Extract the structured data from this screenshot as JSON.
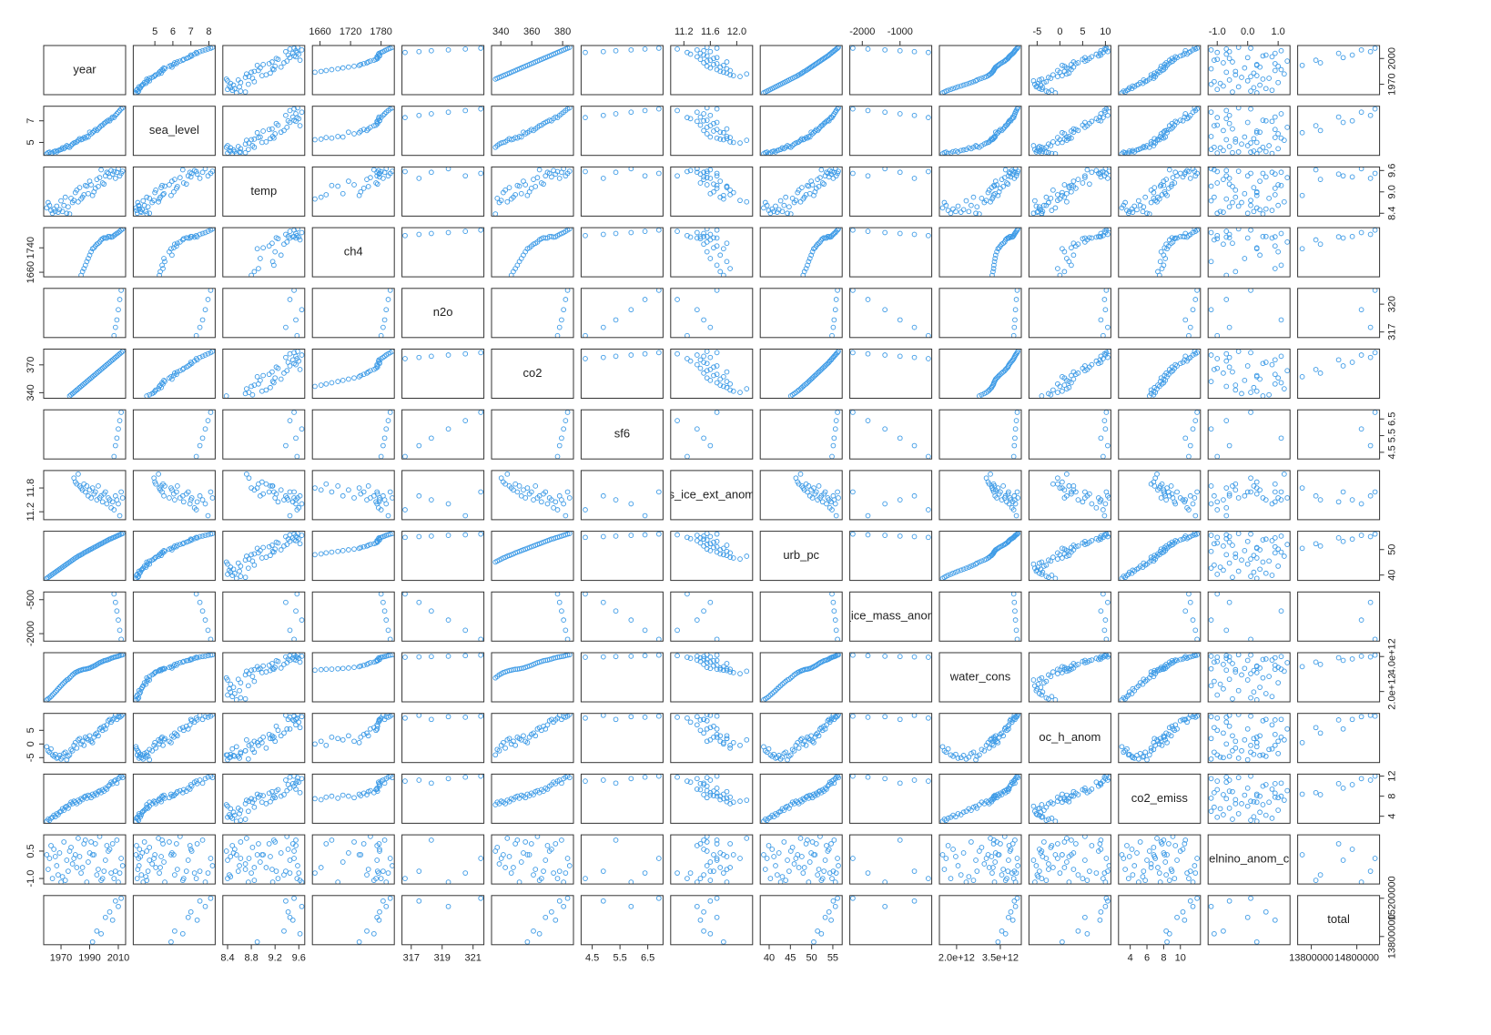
{
  "chart_data": {
    "type": "scatter_matrix",
    "color": "#3c9ae6",
    "variables": [
      {
        "name": "year",
        "lim": [
          1957.9,
          2015.1
        ],
        "xticks": [
          1970,
          1990,
          2010
        ],
        "yticks": [
          1970,
          2000
        ],
        "values": [
          1960,
          1961,
          1962,
          1963,
          1964,
          1965,
          1966,
          1967,
          1968,
          1969,
          1970,
          1971,
          1972,
          1973,
          1974,
          1975,
          1976,
          1977,
          1978,
          1979,
          1980,
          1981,
          1982,
          1983,
          1984,
          1985,
          1986,
          1987,
          1988,
          1989,
          1990,
          1991,
          1992,
          1993,
          1994,
          1995,
          1996,
          1997,
          1998,
          1999,
          2000,
          2001,
          2002,
          2003,
          2004,
          2005,
          2006,
          2007,
          2008,
          2009,
          2010,
          2011,
          2012,
          2013
        ]
      },
      {
        "name": "sea_level",
        "lim": [
          3.8,
          8.35
        ],
        "xticks": [
          5,
          6,
          7,
          8
        ],
        "yticks": [
          5,
          7
        ],
        "values": [
          3.95,
          4.05,
          4.1,
          3.98,
          4.02,
          4.15,
          4.2,
          4.12,
          4.25,
          4.3,
          4.35,
          4.5,
          4.42,
          4.55,
          4.7,
          4.62,
          4.55,
          4.7,
          4.85,
          4.95,
          5.0,
          5.05,
          5.2,
          5.35,
          5.25,
          5.3,
          5.45,
          5.4,
          5.55,
          5.5,
          5.95,
          5.8,
          5.9,
          6.05,
          6.2,
          6.1,
          6.25,
          6.4,
          6.55,
          6.6,
          6.75,
          6.85,
          6.95,
          7.05,
          7.0,
          7.2,
          7.35,
          7.3,
          7.5,
          7.65,
          7.8,
          7.95,
          8.1,
          8.2
        ]
      },
      {
        "name": "temp",
        "lim": [
          8.32,
          9.7
        ],
        "xticks": [
          8.4,
          8.8,
          9.2,
          9.6
        ],
        "yticks": [
          8.4,
          {
            "value": 9,
            "label": "9.0"
          },
          9.6
        ],
        "values": [
          8.55,
          8.7,
          8.62,
          8.48,
          8.4,
          8.52,
          8.45,
          8.6,
          8.43,
          8.5,
          8.75,
          8.45,
          8.62,
          8.85,
          8.4,
          8.58,
          8.38,
          8.82,
          8.7,
          8.76,
          8.98,
          9.05,
          8.72,
          9.12,
          8.8,
          8.85,
          8.92,
          9.18,
          9.16,
          8.95,
          9.3,
          9.2,
          8.9,
          9.0,
          9.1,
          9.35,
          9.15,
          9.4,
          9.62,
          9.25,
          9.22,
          9.45,
          9.55,
          9.52,
          9.42,
          9.6,
          9.5,
          9.57,
          9.38,
          9.55,
          9.65,
          9.45,
          9.52,
          9.58
        ]
      },
      {
        "name": "ch4",
        "lim": [
          1645,
          1806
        ],
        "xticks": [
          1660,
          1720,
          1780
        ],
        "yticks": [
          1660,
          1740
        ],
        "values": [
          null,
          null,
          null,
          null,
          null,
          null,
          null,
          null,
          null,
          null,
          null,
          null,
          null,
          null,
          null,
          null,
          null,
          null,
          null,
          null,
          null,
          null,
          null,
          null,
          1650,
          1662,
          1672,
          1683,
          1695,
          1705,
          1716,
          1727,
          1737,
          1740,
          1746,
          1752,
          1755,
          1759,
          1766,
          1770,
          1773,
          1772,
          1772,
          1777,
          1777,
          1775,
          1776,
          1780,
          1784,
          1787,
          1790,
          1794,
          1798,
          1802
        ]
      },
      {
        "name": "n2o",
        "lim": [
          316.4,
          321.7
        ],
        "xticks": [
          317,
          319,
          321
        ],
        "yticks": [
          317,
          320
        ],
        "values": [
          null,
          null,
          null,
          null,
          null,
          null,
          null,
          null,
          null,
          null,
          null,
          null,
          null,
          null,
          null,
          null,
          null,
          null,
          null,
          null,
          null,
          null,
          null,
          null,
          null,
          null,
          null,
          null,
          null,
          null,
          null,
          null,
          null,
          null,
          null,
          null,
          null,
          null,
          null,
          null,
          null,
          null,
          null,
          null,
          null,
          null,
          null,
          316.6,
          317.5,
          318.3,
          319.4,
          320.5,
          321.5,
          null
        ]
      },
      {
        "name": "co2",
        "lim": [
          334,
          387
        ],
        "xticks": [
          340,
          360,
          380
        ],
        "yticks": [
          340,
          370
        ],
        "values": [
          null,
          null,
          null,
          null,
          null,
          null,
          null,
          null,
          null,
          null,
          null,
          null,
          null,
          null,
          null,
          null,
          336.5,
          337.7,
          339.0,
          340.3,
          341.6,
          342.9,
          344.2,
          345.5,
          346.8,
          348.1,
          349.4,
          350.7,
          352.0,
          353.3,
          354.6,
          355.9,
          357.2,
          358.5,
          359.8,
          361.1,
          362.4,
          363.7,
          365.0,
          366.3,
          367.6,
          368.9,
          370.2,
          371.5,
          372.8,
          374.1,
          375.4,
          376.7,
          378.0,
          379.3,
          380.6,
          381.9,
          383.2,
          384.5
        ]
      },
      {
        "name": "sf6",
        "lim": [
          4.1,
          7.05
        ],
        "xticks": [
          4.5,
          5.5,
          6.5
        ],
        "yticks": [
          4.5,
          5.5,
          6.5
        ],
        "values": [
          null,
          null,
          null,
          null,
          null,
          null,
          null,
          null,
          null,
          null,
          null,
          null,
          null,
          null,
          null,
          null,
          null,
          null,
          null,
          null,
          null,
          null,
          null,
          null,
          null,
          null,
          null,
          null,
          null,
          null,
          null,
          null,
          null,
          null,
          null,
          null,
          null,
          null,
          null,
          null,
          null,
          null,
          null,
          null,
          null,
          null,
          null,
          4.25,
          4.9,
          5.35,
          5.9,
          6.4,
          6.9,
          null
        ]
      },
      {
        "name": "s_ice_ext_anom",
        "lim": [
          11.0,
          12.24
        ],
        "xticks": [
          11.2,
          11.6,
          {
            "value": 12,
            "label": "12.0"
          }
        ],
        "yticks": [
          11.2,
          11.8
        ],
        "values": [
          null,
          null,
          null,
          null,
          null,
          null,
          null,
          null,
          null,
          null,
          null,
          null,
          null,
          null,
          null,
          null,
          null,
          null,
          null,
          12.05,
          11.95,
          11.9,
          12.15,
          11.85,
          11.8,
          11.75,
          11.9,
          11.7,
          11.85,
          11.6,
          11.75,
          11.55,
          11.8,
          11.65,
          11.7,
          11.5,
          11.85,
          11.55,
          11.6,
          11.45,
          11.65,
          11.7,
          11.4,
          11.55,
          11.5,
          11.3,
          11.45,
          11.25,
          11.6,
          11.5,
          11.4,
          11.1,
          11.7,
          11.55
        ]
      },
      {
        "name": "urb_pc",
        "lim": [
          37.9,
          57.2
        ],
        "xticks": [
          40,
          45,
          50,
          55
        ],
        "yticks": [
          40,
          50
        ],
        "values": [
          38.7,
          39.1,
          39.5,
          39.9,
          40.3,
          40.7,
          41.1,
          41.5,
          41.9,
          42.3,
          42.7,
          43.1,
          43.5,
          43.9,
          44.3,
          44.7,
          45.1,
          45.5,
          45.9,
          46.3,
          46.7,
          47.0,
          47.4,
          47.7,
          48.0,
          48.3,
          48.7,
          49.0,
          49.3,
          49.6,
          49.9,
          50.2,
          50.5,
          50.8,
          51.1,
          51.4,
          51.7,
          52.0,
          52.3,
          52.6,
          52.9,
          53.2,
          53.5,
          53.8,
          54.1,
          54.3,
          54.6,
          54.8,
          55.1,
          55.3,
          55.6,
          55.8,
          56.1,
          56.3
        ]
      },
      {
        "name": "_ice_mass_anom",
        "lim": [
          -2330,
          -160
        ],
        "xticks": [
          -2000,
          -1000
        ],
        "yticks": [
          -2000,
          -500
        ],
        "values": [
          null,
          null,
          null,
          null,
          null,
          null,
          null,
          null,
          null,
          null,
          null,
          null,
          null,
          null,
          null,
          null,
          null,
          null,
          null,
          null,
          null,
          null,
          null,
          null,
          null,
          null,
          null,
          null,
          null,
          null,
          null,
          null,
          null,
          null,
          null,
          null,
          null,
          null,
          null,
          null,
          null,
          null,
          null,
          null,
          null,
          null,
          null,
          -250,
          -620,
          -1000,
          -1400,
          -1850,
          -2250,
          null
        ]
      },
      {
        "name": "water_cons",
        "lim": [
          1410000000000.0,
          4220000000000.0
        ],
        "xticks": [
          {
            "value": 2000000000000.0,
            "label": "2.0e+12"
          },
          {
            "value": 3500000000000.0,
            "label": "3.5e+12"
          }
        ],
        "yticks": [
          {
            "value": 2000000000000.0,
            "label": "2.0e+12"
          },
          {
            "value": 4000000000000.0,
            "label": "4.0e+12"
          }
        ],
        "values": [
          1520000000000.0,
          1580000000000.0,
          1640000000000.0,
          1710000000000.0,
          1800000000000.0,
          1880000000000.0,
          1970000000000.0,
          2050000000000.0,
          2150000000000.0,
          2240000000000.0,
          2330000000000.0,
          2420000000000.0,
          2500000000000.0,
          2580000000000.0,
          2660000000000.0,
          2700000000000.0,
          2780000000000.0,
          2860000000000.0,
          2950000000000.0,
          3020000000000.0,
          3080000000000.0,
          3120000000000.0,
          3160000000000.0,
          3200000000000.0,
          3220000000000.0,
          3250000000000.0,
          3270000000000.0,
          3280000000000.0,
          3300000000000.0,
          3320000000000.0,
          3340000000000.0,
          3380000000000.0,
          3420000000000.0,
          3460000000000.0,
          3500000000000.0,
          3550000000000.0,
          3600000000000.0,
          3650000000000.0,
          3680000000000.0,
          3720000000000.0,
          3760000000000.0,
          3780000000000.0,
          3800000000000.0,
          3830000000000.0,
          3860000000000.0,
          3900000000000.0,
          3930000000000.0,
          3960000000000.0,
          3980000000000.0,
          4000000000000.0,
          4020000000000.0,
          4050000000000.0,
          4080000000000.0,
          4100000000000.0
        ]
      },
      {
        "name": "oc_h_anom",
        "lim": [
          -6.8,
          11.2
        ],
        "xticks": [
          -5,
          0,
          5,
          10
        ],
        "yticks": [
          -5,
          0,
          5
        ],
        "values": [
          -1.0,
          -2.5,
          -3.0,
          -1.8,
          -4.0,
          -4.5,
          -3.8,
          -5.2,
          -5.0,
          -4.2,
          -5.5,
          -4.8,
          -3.5,
          -3.0,
          -5.8,
          -4.5,
          -4.0,
          -2.0,
          -2.5,
          -0.5,
          0.5,
          -1.5,
          1.5,
          2.0,
          0.0,
          1.0,
          -0.5,
          2.5,
          2.0,
          1.5,
          3.0,
          1.0,
          0.5,
          2.5,
          3.5,
          4.0,
          3.0,
          5.5,
          6.0,
          5.0,
          6.5,
          5.5,
          7.0,
          8.5,
          9.0,
          8.0,
          8.8,
          9.5,
          10.5,
          9.0,
          10.0,
          9.8,
          10.2,
          10.8
        ]
      },
      {
        "name": "co2_emiss",
        "lim": [
          2.6,
          12.4
        ],
        "xticks": [
          4,
          6,
          8,
          10
        ],
        "yticks": [
          4,
          8,
          12
        ],
        "values": [
          3.0,
          3.4,
          3.2,
          3.6,
          3.8,
          4.2,
          3.9,
          4.5,
          4.3,
          4.8,
          5.0,
          5.5,
          5.2,
          5.8,
          6.0,
          5.6,
          6.3,
          6.8,
          6.5,
          7.0,
          6.8,
          6.5,
          7.2,
          6.9,
          7.5,
          7.3,
          7.8,
          8.0,
          7.6,
          8.2,
          8.0,
          7.7,
          8.4,
          8.1,
          8.6,
          8.3,
          8.9,
          9.1,
          8.7,
          9.3,
          9.0,
          9.6,
          9.4,
          10.0,
          10.3,
          10.8,
          10.5,
          11.0,
          11.2,
          10.6,
          11.5,
          11.8,
          12.0,
          11.7
        ]
      },
      {
        "name": "elnino_anom_c",
        "lim": [
          -1.3,
          1.39
        ],
        "xticks": [
          {
            "value": -1,
            "label": "-1.0"
          },
          {
            "value": 0,
            "label": "0.0"
          },
          {
            "value": 1,
            "label": "1.0"
          }
        ],
        "yticks": [
          {
            "value": -1,
            "label": "-1.0"
          },
          0.5
        ],
        "values": [
          0.3,
          -0.5,
          0.1,
          0.8,
          -1.0,
          0.6,
          0.2,
          -0.3,
          -0.8,
          0.4,
          -1.2,
          -0.9,
          1.0,
          -1.1,
          0.0,
          -0.6,
          0.5,
          0.7,
          -0.2,
          0.1,
          0.3,
          -0.4,
          1.2,
          0.2,
          -0.7,
          -0.4,
          0.9,
          1.1,
          -1.2,
          -0.1,
          0.4,
          1.0,
          0.3,
          0.3,
          0.9,
          -0.8,
          -0.5,
          1.3,
          -1.1,
          -1.0,
          -0.6,
          0.0,
          0.8,
          0.5,
          0.6,
          -0.7,
          0.9,
          -1.0,
          -0.6,
          1.1,
          -1.2,
          -0.7,
          0.1,
          -0.3
        ]
      },
      {
        "name": "total",
        "lim": [
          13500000,
          15300000
        ],
        "xticks": [
          13800000,
          14800000
        ],
        "yticks": [
          13800000,
          15200000
        ],
        "values": [
          null,
          null,
          null,
          null,
          null,
          null,
          null,
          null,
          null,
          null,
          null,
          null,
          null,
          null,
          null,
          null,
          null,
          null,
          null,
          null,
          null,
          null,
          null,
          null,
          null,
          null,
          null,
          null,
          null,
          null,
          null,
          null,
          13600000,
          null,
          null,
          14000000,
          null,
          null,
          13900000,
          null,
          null,
          14500000,
          null,
          null,
          14700000,
          null,
          14400000,
          null,
          15100000,
          null,
          14900000,
          null,
          15200000,
          null
        ]
      }
    ]
  }
}
